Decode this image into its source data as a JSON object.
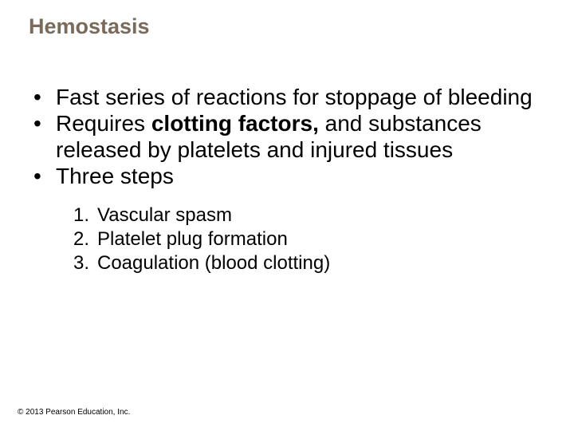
{
  "title": {
    "text": "Hemostasis",
    "color": "#7a6a5a",
    "fontsize": 27
  },
  "bullets": {
    "fontsize": 28,
    "color": "#000000",
    "items": [
      {
        "pre": "Fast series of reactions for stoppage of bleeding",
        "bold": "",
        "post": ""
      },
      {
        "pre": "Requires ",
        "bold": "clotting factors,",
        "post": " and substances released by platelets and injured tissues"
      },
      {
        "pre": "Three steps",
        "bold": "",
        "post": ""
      }
    ]
  },
  "numbered": {
    "fontsize": 24,
    "color": "#000000",
    "items": [
      {
        "n": "1.",
        "text": "Vascular spasm"
      },
      {
        "n": "2.",
        "text": "Platelet plug formation"
      },
      {
        "n": "3.",
        "text": "Coagulation (blood clotting)"
      }
    ]
  },
  "copyright": {
    "text": "© 2013 Pearson Education, Inc.",
    "fontsize": 10,
    "color": "#000000"
  }
}
